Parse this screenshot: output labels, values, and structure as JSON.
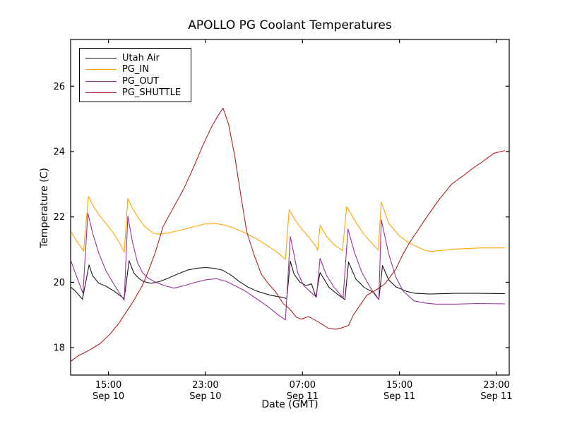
{
  "figure": {
    "background": "#ffffff"
  },
  "chart_data": {
    "type": "line",
    "title": "APOLLO PG Coolant Temperatures",
    "xlabel": "Date (GMT)",
    "ylabel": "Temperature (C)",
    "x_unit": "hours since Sep 10 00:00 GMT",
    "xlim": [
      11.88,
      48.05
    ],
    "ylim": [
      17.16,
      27.43
    ],
    "grid": false,
    "legend_position": "upper left",
    "axis_color": "#000000",
    "x_ticks": [
      {
        "pos": 15,
        "time": "15:00",
        "date": "Sep 10"
      },
      {
        "pos": 23,
        "time": "23:00",
        "date": "Sep 10"
      },
      {
        "pos": 31,
        "time": "07:00",
        "date": "Sep 11"
      },
      {
        "pos": 39,
        "time": "15:00",
        "date": "Sep 11"
      },
      {
        "pos": 47,
        "time": "23:00",
        "date": "Sep 11"
      }
    ],
    "y_ticks": [
      18,
      20,
      22,
      24,
      26
    ],
    "series": [
      {
        "name": "Utah Air",
        "color": "#1a1a1a",
        "x": [
          11.9,
          12.3,
          12.85,
          13.4,
          13.7,
          14.2,
          14.8,
          15.5,
          16.1,
          16.3,
          16.7,
          17.1,
          17.5,
          17.9,
          18.5,
          19.2,
          19.9,
          20.7,
          21.5,
          22.3,
          23.0,
          23.7,
          24.4,
          25.1,
          25.8,
          26.5,
          27.3,
          28.4,
          29.3,
          29.7,
          30.0,
          30.3,
          30.8,
          31.3,
          31.75,
          32.1,
          32.45,
          33.2,
          33.9,
          34.5,
          34.8,
          35.4,
          36.1,
          36.9,
          37.3,
          37.6,
          38.1,
          38.7,
          39.6,
          40.3,
          41.5,
          43.5,
          45.5,
          47.7
        ],
        "y": [
          19.85,
          19.72,
          19.48,
          20.53,
          20.2,
          19.97,
          19.88,
          19.72,
          19.55,
          19.5,
          20.66,
          20.28,
          20.12,
          20.02,
          19.97,
          20.02,
          20.12,
          20.25,
          20.37,
          20.43,
          20.45,
          20.43,
          20.37,
          20.22,
          20.02,
          19.85,
          19.72,
          19.6,
          19.54,
          19.5,
          20.64,
          20.25,
          20.0,
          19.9,
          19.95,
          19.55,
          20.3,
          19.84,
          19.63,
          19.47,
          20.62,
          20.1,
          19.84,
          19.68,
          19.47,
          20.51,
          20.08,
          19.86,
          19.72,
          19.66,
          19.64,
          19.66,
          19.66,
          19.65
        ]
      },
      {
        "name": "PG_IN",
        "color": "#FFA500",
        "x": [
          11.9,
          12.4,
          12.95,
          13.35,
          13.8,
          14.25,
          14.9,
          15.5,
          16.0,
          16.3,
          16.6,
          17.0,
          17.5,
          18.0,
          18.7,
          19.3,
          20.1,
          21.0,
          22.0,
          22.9,
          23.8,
          24.6,
          25.4,
          26.2,
          27.1,
          28.0,
          28.9,
          29.6,
          29.9,
          30.4,
          31.0,
          31.6,
          32.1,
          32.25,
          32.45,
          33.0,
          33.6,
          34.3,
          34.65,
          35.3,
          36.0,
          36.7,
          37.25,
          37.5,
          38.1,
          39.0,
          39.8,
          41.0,
          41.6,
          43.3,
          45.7,
          47.7
        ],
        "y": [
          21.55,
          21.25,
          20.96,
          22.63,
          22.3,
          22.05,
          21.75,
          21.45,
          21.15,
          20.92,
          22.56,
          22.25,
          21.95,
          21.7,
          21.5,
          21.47,
          21.52,
          21.6,
          21.7,
          21.78,
          21.8,
          21.75,
          21.65,
          21.52,
          21.35,
          21.15,
          20.92,
          20.7,
          22.22,
          21.9,
          21.6,
          21.35,
          21.1,
          20.97,
          21.74,
          21.4,
          21.15,
          20.97,
          22.32,
          21.9,
          21.5,
          21.2,
          20.99,
          22.45,
          21.81,
          21.42,
          21.2,
          20.99,
          20.94,
          21.01,
          21.05,
          21.05
        ]
      },
      {
        "name": "PG_OUT",
        "color": "#993399",
        "x": [
          11.9,
          12.4,
          12.9,
          13.3,
          13.7,
          14.2,
          14.8,
          15.4,
          16.0,
          16.3,
          16.6,
          17.0,
          17.4,
          17.8,
          18.3,
          18.9,
          19.6,
          20.4,
          21.3,
          22.2,
          23.1,
          23.9,
          24.7,
          25.5,
          26.3,
          27.2,
          28.1,
          29.0,
          29.6,
          30.0,
          30.6,
          31.1,
          31.7,
          32.15,
          32.45,
          33.0,
          33.6,
          34.35,
          34.75,
          35.3,
          35.9,
          36.5,
          37.0,
          37.3,
          37.5,
          38.1,
          38.7,
          39.3,
          40.2,
          41.0,
          42.0,
          43.5,
          45.5,
          47.7
        ],
        "y": [
          20.66,
          20.15,
          19.66,
          22.12,
          21.5,
          20.9,
          20.35,
          19.97,
          19.62,
          19.45,
          22.03,
          21.2,
          20.6,
          20.3,
          20.12,
          20.0,
          19.9,
          19.82,
          19.9,
          20.0,
          20.08,
          20.11,
          20.03,
          19.88,
          19.73,
          19.5,
          19.27,
          19.0,
          18.85,
          21.4,
          20.3,
          19.9,
          19.69,
          19.54,
          20.73,
          20.2,
          19.85,
          19.52,
          21.63,
          20.9,
          20.3,
          19.9,
          19.6,
          19.47,
          21.91,
          20.88,
          20.16,
          19.73,
          19.43,
          19.37,
          19.33,
          19.33,
          19.35,
          19.34
        ]
      },
      {
        "name": "PG_SHUTTLE",
        "color": "#B22222",
        "x": [
          11.9,
          12.5,
          13.0,
          13.6,
          14.3,
          15.1,
          15.8,
          16.4,
          17.1,
          17.8,
          18.3,
          18.9,
          19.5,
          20.3,
          21.2,
          22.0,
          22.8,
          23.5,
          24.0,
          24.45,
          24.9,
          25.4,
          25.9,
          26.4,
          27.0,
          27.6,
          28.2,
          28.8,
          29.4,
          29.9,
          30.5,
          30.9,
          31.5,
          32.0,
          32.6,
          33.1,
          33.7,
          34.2,
          34.8,
          35.2,
          36.3,
          37.0,
          37.8,
          38.7,
          39.2,
          39.8,
          41.0,
          42.2,
          43.3,
          44.4,
          45.1,
          45.7,
          46.8,
          47.7
        ],
        "y": [
          17.58,
          17.75,
          17.84,
          17.96,
          18.12,
          18.4,
          18.72,
          19.05,
          19.45,
          19.9,
          20.35,
          20.95,
          21.7,
          22.25,
          22.85,
          23.5,
          24.2,
          24.75,
          25.08,
          25.33,
          24.85,
          23.9,
          22.7,
          21.55,
          20.85,
          20.25,
          19.95,
          19.7,
          19.35,
          19.2,
          18.93,
          18.87,
          18.95,
          18.85,
          18.72,
          18.6,
          18.56,
          18.6,
          18.68,
          19.0,
          19.6,
          19.75,
          19.95,
          20.4,
          20.8,
          21.2,
          21.86,
          22.5,
          23.0,
          23.3,
          23.5,
          23.65,
          23.95,
          24.03
        ]
      }
    ]
  }
}
